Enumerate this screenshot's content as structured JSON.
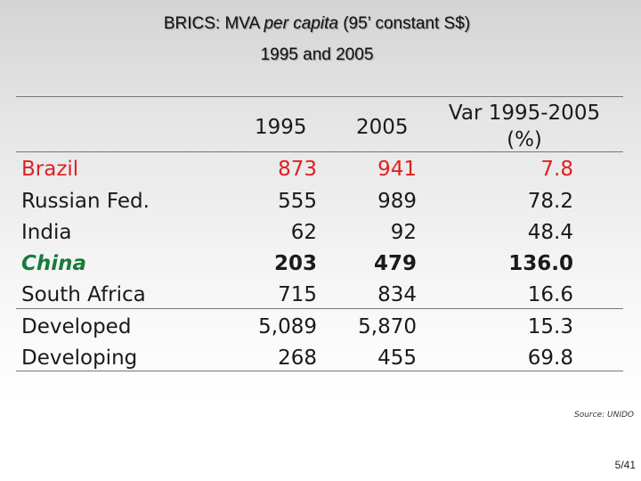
{
  "title": {
    "line1_prefix": "BRICS: MVA ",
    "line1_italic": "per capita",
    "line1_suffix": " (95’ constant S$)",
    "line2": "1995 and 2005"
  },
  "table": {
    "headers": {
      "col1": "1995",
      "col2": "2005",
      "col3_line1": "Var 1995-2005",
      "col3_line2": "(%)"
    },
    "rows": [
      {
        "name": "Brazil",
        "v1995": "873",
        "v2005": "941",
        "var": "7.8"
      },
      {
        "name": "Russian Fed.",
        "v1995": "555",
        "v2005": "989",
        "var": "78.2"
      },
      {
        "name": "India",
        "v1995": "62",
        "v2005": "92",
        "var": "48.4"
      },
      {
        "name": "China",
        "v1995": "203",
        "v2005": "479",
        "var": "136.0"
      },
      {
        "name": "South Africa",
        "v1995": "715",
        "v2005": "834",
        "var": "16.6"
      },
      {
        "name": "Developed",
        "v1995": "5,089",
        "v2005": "5,870",
        "var": "15.3"
      },
      {
        "name": "Developing",
        "v1995": "268",
        "v2005": "455",
        "var": "69.8"
      }
    ]
  },
  "source": "Source: UNIDO",
  "page_number": "5/41",
  "colors": {
    "brazil": "#e02020",
    "china": "#1a7a3a",
    "text": "#1a1a1a",
    "rule": "#777777"
  }
}
